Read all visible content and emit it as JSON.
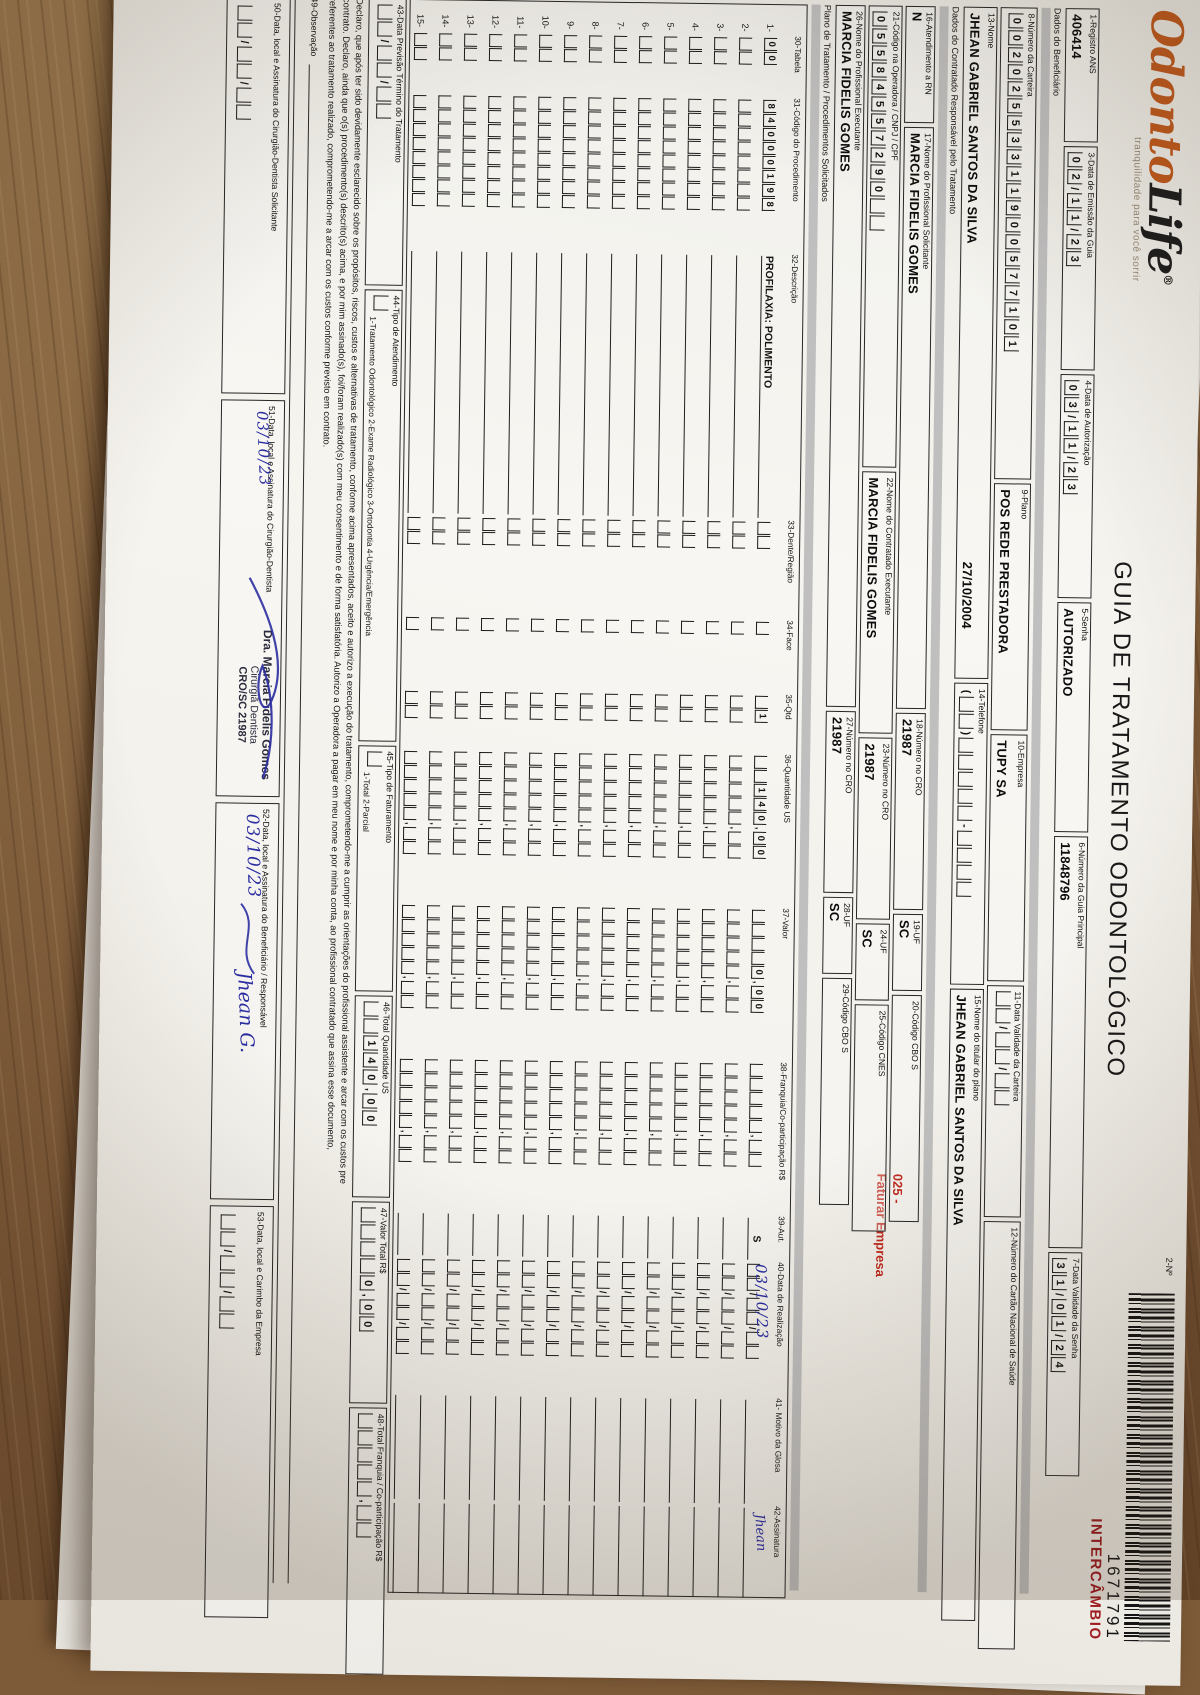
{
  "header": {
    "logo_part1": "Odonto",
    "logo_part2": "Life",
    "logo_reg": "®",
    "tagline": "tranquilidade para você sorrir",
    "title": "GUIA DE TRATAMENTO ODONTOLÓGICO",
    "num_label": "2-Nº",
    "code": "1671791",
    "code_tag": "INTERCÂMBIO",
    "colors": {
      "logo_orange": "#c05a1e",
      "intercambio_red": "#9e1d22",
      "ink_blue": "#2a2da0",
      "note_red": "#bf2c20"
    }
  },
  "sections": {
    "beneficiario": "Dados do Beneficiário",
    "contratado": "Dados do Contratado Responsável pelo Tratamento",
    "plano": "Plano de Tratamento / Procedimentos Solicitados"
  },
  "fields": {
    "f1": {
      "label": "1-Registro ANS",
      "value": "406414"
    },
    "f3": {
      "label": "3-Data de Emissão da Guia",
      "comb": "02/11/23"
    },
    "f4": {
      "label": "4-Data de Autorização",
      "comb": "03/11/23"
    },
    "f5": {
      "label": "5-Senha",
      "value": "AUTORIZADO"
    },
    "f6": {
      "label": "6-Número da Guia Principal",
      "value": "11848796"
    },
    "f7": {
      "label": "7-Data Validade da Senha",
      "comb": "31/01/24"
    },
    "f8": {
      "label": "8-Número da Carteira",
      "comb": "00202553311900577101"
    },
    "f9": {
      "label": "9-Plano",
      "value": "POS REDE PRESTADORA"
    },
    "f10": {
      "label": "10-Empresa",
      "value": "TUPY SA"
    },
    "f11": {
      "label": "11-Data Validade da Carteira",
      "comb": "  /  /  "
    },
    "f12": {
      "label": "12-Número do Cartão Nacional de Saúde",
      "value": ""
    },
    "f13": {
      "label": "13-Nome",
      "value": "JHEAN GABRIEL SANTOS DA SILVA",
      "extra": "27/10/2004"
    },
    "f14": {
      "label": "14-Telefone",
      "comb": "(  )     -    "
    },
    "f15": {
      "label": "15-Nome do titular do plano",
      "value": "JHEAN GABRIEL SANTOS DA SILVA"
    },
    "f16": {
      "label": "16-Atendimento a RN",
      "value": "N"
    },
    "f17": {
      "label": "17-Nome do Profissional Solicitante",
      "value": "MARCIA FIDELIS GOMES"
    },
    "f18": {
      "label": "18-Número no CRO",
      "value": "21987"
    },
    "f19": {
      "label": "19-UF",
      "value": "SC"
    },
    "f20": {
      "label": "20-Código CBO S",
      "value": ""
    },
    "f21": {
      "label": "21-Código na Operadora / CNPJ / CPF",
      "comb": "05584557290  "
    },
    "f22": {
      "label": "22-Nome do Contratado Executante",
      "value": "MARCIA FIDELIS GOMES"
    },
    "f23": {
      "label": "23-Número no CRO",
      "value": "21987"
    },
    "f24": {
      "label": "24-UF",
      "value": "SC"
    },
    "f25": {
      "label": "25-Código CNES",
      "value": ""
    },
    "f26": {
      "label": "26-Nome do Profissional Executante",
      "value": "MARCIA FIDELIS GOMES"
    },
    "f27": {
      "label": "27-Número no CRO",
      "value": "21987"
    },
    "f28": {
      "label": "28-UF",
      "value": "SC"
    },
    "f29": {
      "label": "29-Código CBO S",
      "value": ""
    },
    "f43": {
      "label": "43-Data Previsão Término do Tratamento",
      "comb": "  /  /  "
    },
    "f44": {
      "label": "44-Tipo de Atendimento",
      "comb": " ",
      "options": "1-Tratamento Odontológico   2-Exame Radiológico   3-Ortodontia   4-Urgência/Emergência"
    },
    "f45": {
      "label": "45-Tipo de Faturamento",
      "comb": " ",
      "options": "1-Total   2-Parcial"
    },
    "f46": {
      "label": "46-Total Quantidade US",
      "comb": "  140,00"
    },
    "f47": {
      "label": "47-Valor Total R$",
      "comb": "    0,00"
    },
    "f48": {
      "label": "48-Total Franquia / Co-participação R$",
      "comb": "     ,  "
    },
    "f49": {
      "label": "49-Observação"
    },
    "f50": {
      "label": "50-Data, local e Assinatura do Cirurgião-Dentista Solicitante",
      "comb": "  /  /  "
    },
    "f51": {
      "label": "51-Data, local e Assinatura do Cirurgião-Dentista",
      "hand_date": "03/10/23",
      "stamp1": "Dra. Marcia Fidelis Gomes",
      "stamp2": "Cirurgiã Dentista",
      "stamp3": "CRO/SC 21987"
    },
    "f52": {
      "label": "52-Data, local e Assinatura do Beneficiário / Responsável",
      "hand_date": "03/10/23",
      "hand_sig": "Jhean G."
    },
    "f53": {
      "label": "53-Data, local e Carimbo da Empresa",
      "comb": "  /  /  "
    }
  },
  "note20": {
    "l1": "025 -",
    "l2": "Faturar Empresa"
  },
  "declaration": {
    "l1": "Declaro, que após ter sido devidamente esclarecido sobre os propósitos, riscos, custos e alternativas de tratamento, conforme acima apresentados, aceito e autorizo a execução do tratamento, comprometendo-me a cumprir as orientações do profissional assistente e arcar com os custos pre",
    "l2": "contrato. Declaro, ainda que o(s) procedimento(s) descrito(s) acima, e por mim assinado(s), foi/foram realizado(s) com meu consentimento e de forma satisfatória. Autorizo a Operadora a pagar em meu nome e por minha conta, ao profissional contratado que assina esse documento,",
    "l3": "referentes ao tratamento realizado, comprometendo-me a arcar com os custos conforme previsto em contrato."
  },
  "table": {
    "headers": [
      "30-Tabela",
      "31-Código do Procedimento",
      "32-Descrição",
      "33-Dente/Região",
      "34-Face",
      "35-Qtd",
      "36-Quantidade US",
      "37-Valor",
      "38-Franquia/Co-participação R$",
      "39-Aut.",
      "40-Data de Realização",
      "41- Motivo da Glosa",
      "42-Assinatura"
    ],
    "row_numbers": [
      "1-",
      "2-",
      "3-",
      "4-",
      "5-",
      "6-",
      "7-",
      "8-",
      "9-",
      "10-",
      "11-",
      "12-",
      "13-",
      "14-",
      "15-"
    ],
    "row1": {
      "tabela": "00",
      "codigo": "84000198",
      "descricao": "PROFILAXIA: POLIMENTO",
      "dente": "  ",
      "face": " ",
      "qtd": " 1",
      "qus": "  140,00",
      "valor": "    0,00",
      "franquia": "     ,  ",
      "aut": "S",
      "data": "  /  /  ",
      "data_hand": "03/10/23",
      "glosa": "",
      "ass": "",
      "ass_hand": "Jhean"
    },
    "empty": {
      "tabela": "  ",
      "codigo": "        ",
      "descricao": "",
      "dente": "  ",
      "face": " ",
      "qtd": "  ",
      "qus": "     ,  ",
      "valor": "     ,  ",
      "franquia": "     ,  ",
      "aut": "",
      "data": "  /  /  ",
      "glosa": "",
      "ass": ""
    }
  }
}
